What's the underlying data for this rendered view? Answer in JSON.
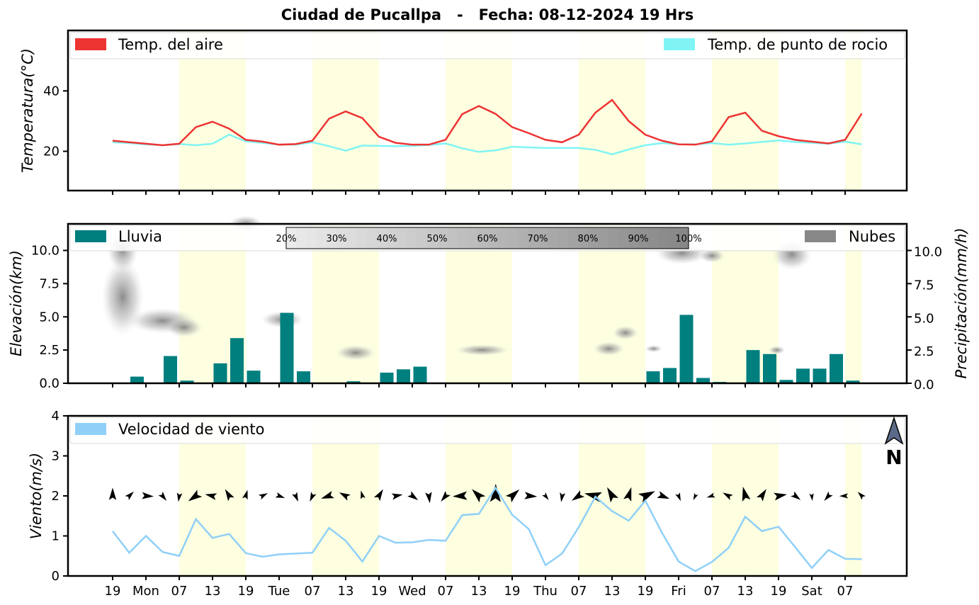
{
  "title": "Ciudad de Pucallpa   -   Fecha: 08-12-2024 19 Hrs",
  "colors": {
    "temp_air": "#ee3333",
    "temp_dew": "#80f4f4",
    "rain": "#007f7f",
    "clouds": "#888888",
    "wind": "#90d0f8",
    "day_band": "#fdffe0"
  },
  "x_ticks": [
    "19",
    "Mon",
    "07",
    "13",
    "19",
    "Tue",
    "07",
    "13",
    "19",
    "Wed",
    "07",
    "13",
    "19",
    "Thu",
    "07",
    "13",
    "19",
    "Fri",
    "07",
    "13",
    "19",
    "Sat",
    "07"
  ],
  "north_label": "N",
  "chart_data": [
    {
      "type": "line",
      "ylabel": "Temperatura(°C)",
      "ylim": [
        7,
        60
      ],
      "yticks": [
        20,
        40
      ],
      "legend": {
        "air": "Temp. del aire",
        "dew": "Temp. de punto de rocio"
      },
      "series": [
        {
          "name": "Temp. del aire",
          "values": [
            23.5,
            23,
            22.5,
            22,
            22.5,
            28,
            29.8,
            27.5,
            23.8,
            23.2,
            22.2,
            22.4,
            23.5,
            30.8,
            33.2,
            31,
            24.8,
            22.8,
            22.2,
            22.2,
            23.8,
            32.3,
            35,
            32.4,
            28,
            26,
            23.8,
            23,
            25.5,
            32.8,
            37,
            30,
            25.5,
            23.5,
            22.3,
            22.2,
            23.3,
            31.3,
            32.8,
            26.8,
            25,
            23.8,
            23.2,
            22.6,
            23.8,
            32.5
          ]
        },
        {
          "name": "Temp. de punto de rocio",
          "values": [
            23,
            22.7,
            22.3,
            22,
            22.4,
            22,
            22.5,
            25.5,
            23.3,
            22.8,
            22.2,
            22.2,
            23,
            21.7,
            20.2,
            21.9,
            21.8,
            21.7,
            21.8,
            22.1,
            22.6,
            21,
            19.8,
            20.3,
            21.5,
            21.3,
            21.1,
            21.1,
            21.1,
            20.5,
            19,
            20.6,
            22,
            22.7,
            22.3,
            22.3,
            22.7,
            22.2,
            22.6,
            23.1,
            23.6,
            23.1,
            22.8,
            22.5,
            23.2,
            22.3
          ]
        }
      ]
    },
    {
      "type": "bar",
      "ylabel": "Elevación(km)",
      "ylabel_right": "Precipitación(mm/h)",
      "ylim": [
        0,
        12
      ],
      "yticks": [
        "0.0",
        "2.5",
        "5.0",
        "7.5",
        "10.0"
      ],
      "legend": {
        "rain": "Lluvia",
        "clouds": "Nubes"
      },
      "colorbar_labels": [
        "20%",
        "30%",
        "40%",
        "50%",
        "60%",
        "70%",
        "80%",
        "90%",
        "100%"
      ],
      "values": [
        0,
        0.5,
        0,
        2.05,
        0.2,
        0,
        1.5,
        3.4,
        0.95,
        0,
        5.3,
        0.9,
        0,
        0,
        0.15,
        0,
        0.8,
        1.05,
        1.25,
        0,
        0,
        0,
        0,
        0,
        0,
        0,
        0,
        0,
        0,
        0,
        0,
        0,
        0.9,
        1.15,
        5.15,
        0.4,
        0.1,
        0,
        2.5,
        2.2,
        0.25,
        1.1,
        1.1,
        2.2,
        0.2,
        0
      ]
    },
    {
      "type": "line",
      "ylabel": "Viento(m/s)",
      "ylim": [
        0,
        4
      ],
      "yticks": [
        0,
        1,
        2,
        3,
        4
      ],
      "legend": {
        "wind": "Velocidad de viento"
      },
      "series": [
        {
          "name": "Velocidad de viento",
          "values": [
            1.12,
            0.58,
            1.0,
            0.6,
            0.5,
            1.42,
            0.95,
            1.05,
            0.57,
            0.48,
            0.54,
            0.56,
            0.58,
            1.2,
            0.88,
            0.36,
            1.0,
            0.83,
            0.84,
            0.9,
            0.88,
            1.52,
            1.55,
            2.2,
            1.53,
            1.17,
            0.27,
            0.56,
            1.22,
            1.98,
            1.62,
            1.38,
            1.88,
            1.08,
            0.36,
            0.12,
            0.35,
            0.7,
            1.48,
            1.12,
            1.23,
            0.72,
            0.2,
            0.65,
            0.43,
            0.42
          ]
        }
      ]
    }
  ]
}
